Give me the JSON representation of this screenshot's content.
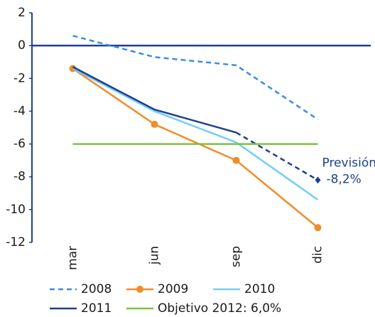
{
  "chart_data": {
    "type": "line",
    "categories": [
      "mar",
      "jun",
      "sep",
      "dic"
    ],
    "series": [
      {
        "name": "2008",
        "color": "#3a8dde",
        "dashed": true,
        "values": [
          0.6,
          -0.7,
          -1.2,
          -4.5
        ]
      },
      {
        "name": "2009",
        "color": "#f28c28",
        "marker": "circle",
        "values": [
          -1.4,
          -4.8,
          -7.0,
          -11.1
        ]
      },
      {
        "name": "2010",
        "color": "#72cdf4",
        "values": [
          -1.4,
          -4.0,
          -5.9,
          -9.4
        ]
      },
      {
        "name": "2011",
        "color": "#1f3f8f",
        "forecast_from": 2,
        "values": [
          -1.3,
          -3.9,
          -5.3,
          -8.2
        ],
        "value_labels": [
          null,
          null,
          null,
          "-8,2%"
        ]
      },
      {
        "name": "Objetivo 2012: 6,0%",
        "color": "#7dc242",
        "values": [
          -6,
          -6,
          -6,
          -6
        ]
      }
    ],
    "annotation": "Previsión:",
    "ylim": [
      -12,
      2
    ],
    "yticks": [
      -12,
      -10,
      -8,
      -6,
      -4,
      -2,
      0,
      2
    ],
    "grid": false
  }
}
